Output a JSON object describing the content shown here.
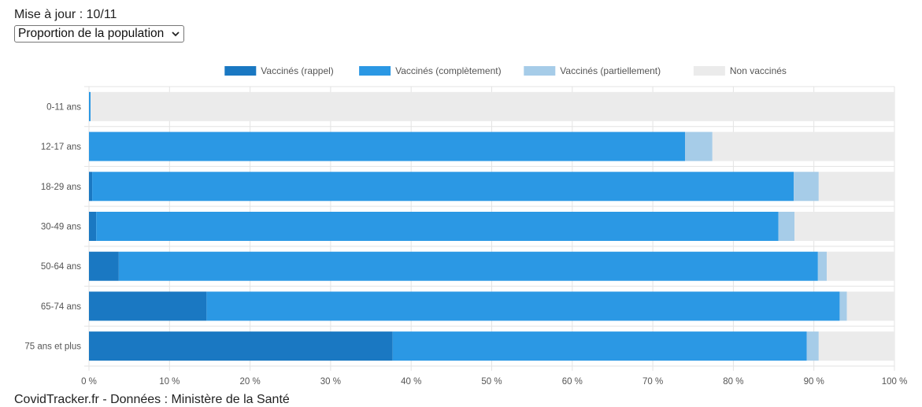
{
  "header": {
    "update_label": "Mise à jour : 10/11"
  },
  "selector": {
    "value": "Proportion de la population"
  },
  "footer": {
    "source": "CovidTracker.fr - Données : Ministère de la Santé"
  },
  "icons": {
    "selector": "chevron-down-icon"
  },
  "chart_data": {
    "type": "bar",
    "orientation": "horizontal",
    "stacked": true,
    "categories": [
      "0-11 ans",
      "12-17 ans",
      "18-29 ans",
      "30-49 ans",
      "50-64 ans",
      "65-74 ans",
      "75 ans et plus"
    ],
    "series": [
      {
        "name": "Vaccinés (rappel)",
        "color": "#1a78c2",
        "values": [
          0,
          0,
          0.4,
          0.9,
          3.7,
          14.6,
          37.7
        ]
      },
      {
        "name": "Vaccinés (complètement)",
        "color": "#2b98e4",
        "values": [
          0.2,
          74.0,
          87.1,
          84.7,
          86.8,
          78.6,
          51.4
        ]
      },
      {
        "name": "Vaccinés (partiellement)",
        "color": "#a6cce8",
        "values": [
          0,
          3.4,
          3.1,
          2.0,
          1.1,
          0.9,
          1.5
        ]
      },
      {
        "name": "Non vaccinés",
        "color": "#ebebeb",
        "values": [
          99.8,
          22.6,
          9.4,
          12.4,
          8.4,
          5.9,
          9.4
        ]
      }
    ],
    "x_ticks": [
      "0 %",
      "10 %",
      "20 %",
      "30 %",
      "40 %",
      "50 %",
      "60 %",
      "70 %",
      "80 %",
      "90 %",
      "100 %"
    ],
    "xlim": [
      0,
      100
    ],
    "grid": true,
    "legend_position": "top"
  }
}
